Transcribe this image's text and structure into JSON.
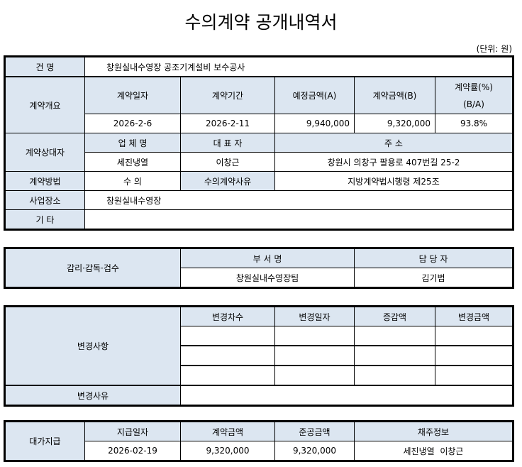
{
  "title": "수의계약 공개내역서",
  "unit": "(단위: 원)",
  "contract": {
    "name_label": "건 명",
    "name": "창원실내수영장 공조기계설비 보수공사",
    "overview_label": "계약개요",
    "headers": [
      "계약일자",
      "계약기간",
      "예정금액(A)",
      "계약금액(B)",
      "계약률(%)",
      "(B/A)"
    ],
    "values": [
      "2026-2-6",
      "2026-2-11",
      "9,940,000",
      "9,320,000",
      "93.8%"
    ],
    "party_label": "계약상대자",
    "party_headers": [
      "업 체 명",
      "대 표 자",
      "주 소"
    ],
    "party_values": [
      "세진냉열",
      "이창근",
      "창원시 의창구 팔용로 407번길 25-2"
    ],
    "method_label": "계약방법",
    "method": "수 의",
    "reason_label": "수의계약사유",
    "reason": "지방계약법시행령 제25조",
    "site_label": "사업장소",
    "site": "창원실내수영장",
    "etc_label": "기 타"
  },
  "supervision": {
    "label": "감리·감독·검수",
    "headers": [
      "부 서 명",
      "담 당 자"
    ],
    "values": [
      "창원실내수영장팀",
      "김기범"
    ]
  },
  "changes": {
    "label": "변경사항",
    "headers": [
      "변경차수",
      "변경일자",
      "증감액",
      "변경금액"
    ],
    "reason_label": "변경사유"
  },
  "payment": {
    "label": "대가지급",
    "headers": [
      "지급일자",
      "계약금액",
      "준공금액",
      "채주정보"
    ],
    "values": [
      "2026-02-19",
      "9,320,000",
      "9,320,000",
      "세진냉열  이창근"
    ]
  }
}
